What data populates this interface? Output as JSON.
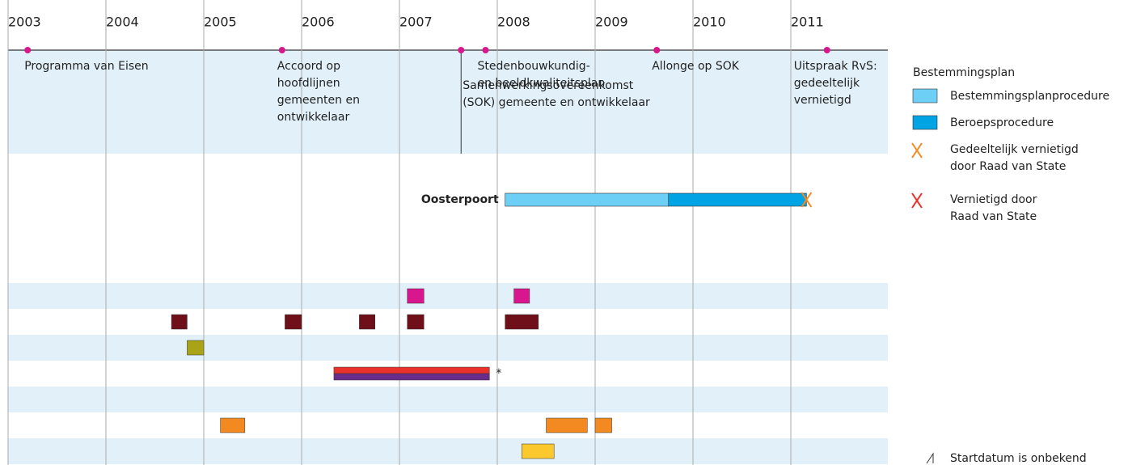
{
  "years": [
    2003,
    2004,
    2005,
    2006,
    2007,
    2008,
    2009,
    2010,
    2011
  ],
  "events": [
    {
      "date": 2003.2,
      "lines": [
        "Programma van Eisen"
      ]
    },
    {
      "date": 2005.8,
      "lines": [
        "Accoord op",
        "hoofdlijnen",
        "gemeenten en",
        "ontwikkelaar"
      ]
    },
    {
      "date": 2007.63,
      "lines": [
        "Samenwerkingsovereenkomst",
        "(SOK) gemeente en ontwikkelaar"
      ]
    },
    {
      "date": 2007.88,
      "lines": [
        "Stedenbouwkundig-",
        "en beeldkwaliteitsplan"
      ]
    },
    {
      "date": 2009.63,
      "lines": [
        "Allonge op SOK"
      ]
    },
    {
      "date": 2011.37,
      "lines": [
        "Uitspraak RvS:",
        "gedeeltelijk",
        "vernietigd"
      ]
    }
  ],
  "plan": {
    "name": "Oosterpoort",
    "segments": [
      {
        "start": 2008.08,
        "end": 2009.75,
        "color": "#6ecff6"
      },
      {
        "start": 2009.75,
        "end": 2011.16,
        "color": "#00a3e4"
      }
    ],
    "mark_date": 2011.16,
    "mark_color": "#f28a21"
  },
  "rows": [
    {
      "color": "#d8168e",
      "bars": [
        [
          2007.08,
          2007.25
        ],
        [
          2008.17,
          2008.33
        ]
      ]
    },
    {
      "color": "#6e0f1a",
      "bars": [
        [
          2004.67,
          2004.83
        ],
        [
          2005.83,
          2006.0
        ],
        [
          2006.59,
          2006.75
        ],
        [
          2007.08,
          2007.25
        ],
        [
          2008.08,
          2008.42
        ]
      ]
    },
    {
      "color": "#a9a318",
      "bars": [
        [
          2004.83,
          2005.0
        ]
      ]
    },
    {
      "color": "#e8312a",
      "color2": "#6a2c8b",
      "bars": [
        [
          2006.33,
          2007.92
        ]
      ],
      "note": "*"
    },
    {
      "color": "#999999",
      "bars": []
    },
    {
      "color": "#f28a21",
      "bars": [
        [
          2005.17,
          2005.42
        ],
        [
          2008.5,
          2008.92
        ],
        [
          2009.0,
          2009.17
        ]
      ]
    },
    {
      "color": "#fbc82e",
      "bars": [
        [
          2008.25,
          2008.58
        ]
      ]
    }
  ],
  "legend": {
    "title": "Bestemmingsplan",
    "items": [
      {
        "label": "Bestemmingsplanprocedure",
        "lines": [
          "Bestemmingsplanprocedure"
        ]
      },
      {
        "label": "Beroepsprocedure",
        "lines": [
          "Beroepsprocedure"
        ]
      },
      {
        "label": "partial",
        "lines": [
          "Gedeeltelijk vernietigd",
          "door Raad van State"
        ]
      },
      {
        "label": "full",
        "lines": [
          "Vernietigd door",
          "Raad van State"
        ]
      }
    ],
    "footnote": "Startdatum is onbekend"
  }
}
